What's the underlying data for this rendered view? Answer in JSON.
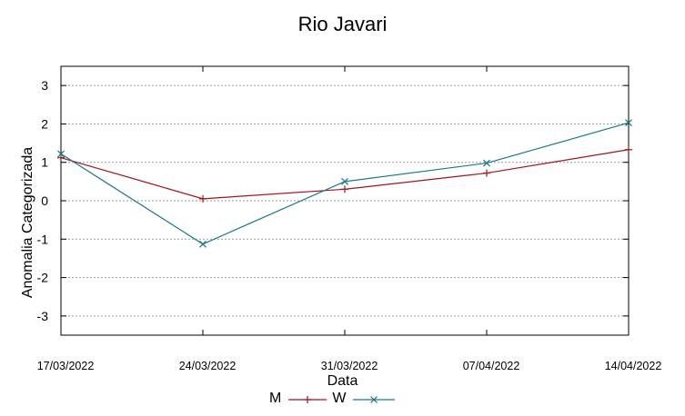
{
  "chart_data": {
    "type": "line",
    "title": "Rio Javari",
    "xlabel": "Data",
    "ylabel": "Anomalia Categorizada",
    "categories": [
      "17/03/2022",
      "24/03/2022",
      "31/03/2022",
      "07/04/2022",
      "14/04/2022"
    ],
    "yticks": [
      "-3",
      "-2",
      "-1",
      "0",
      "1",
      "2",
      "3"
    ],
    "ylim": [
      -3.5,
      3.5
    ],
    "grid": true,
    "legend_position": "bottom",
    "series": [
      {
        "name": "M",
        "color": "#a0141e",
        "marker": "plus",
        "values": [
          1.12,
          0.05,
          0.3,
          0.72,
          1.33
        ]
      },
      {
        "name": "W",
        "color": "#1a7a84",
        "marker": "x",
        "values": [
          1.22,
          -1.13,
          0.5,
          0.98,
          2.03
        ]
      }
    ]
  }
}
